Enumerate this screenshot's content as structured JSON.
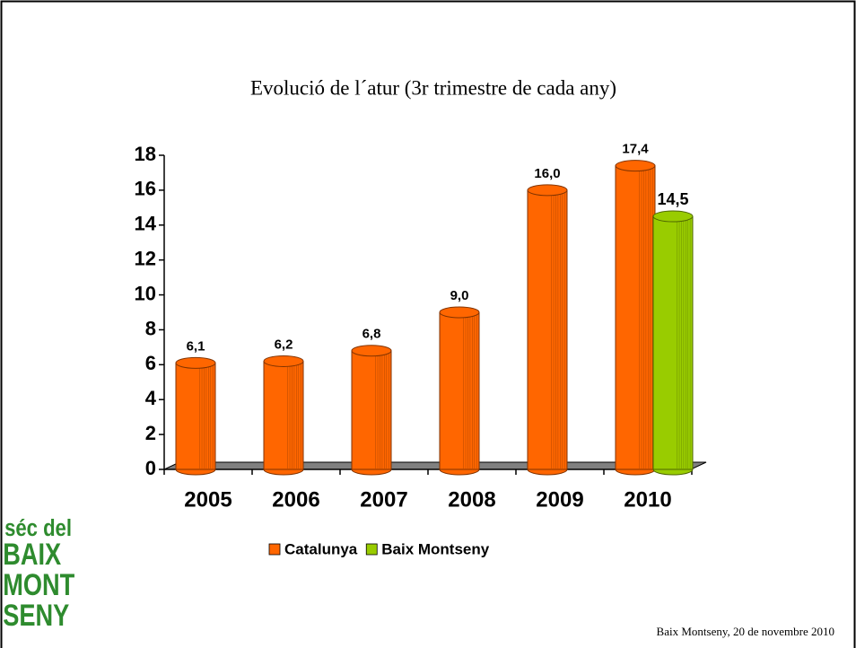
{
  "chart_data": {
    "type": "bar",
    "title": "Evolució de l´atur (3r trimestre de cada any)",
    "categories": [
      "2005",
      "2006",
      "2007",
      "2008",
      "2009",
      "2010"
    ],
    "series": [
      {
        "name": "Catalunya",
        "color": "#ff6600",
        "values": [
          6.1,
          6.2,
          6.8,
          9.0,
          16.0,
          17.4
        ],
        "value_labels": [
          "6,1",
          "6,2",
          "6,8",
          "9,0",
          "16,0",
          "17,4"
        ]
      },
      {
        "name": "Baix Montseny",
        "color": "#99cc00",
        "values": [
          null,
          null,
          null,
          null,
          null,
          14.5
        ],
        "value_labels": [
          null,
          null,
          null,
          null,
          null,
          "14,5"
        ]
      }
    ],
    "ylim": [
      0,
      18
    ],
    "yticks": [
      0,
      2,
      4,
      6,
      8,
      10,
      12,
      14,
      16,
      18
    ],
    "legend": "bottom"
  },
  "logo": [
    "séc del",
    "BAIX",
    "MONT",
    "SENY"
  ],
  "footer": "Baix Montseny, 20 de novembre 2010"
}
